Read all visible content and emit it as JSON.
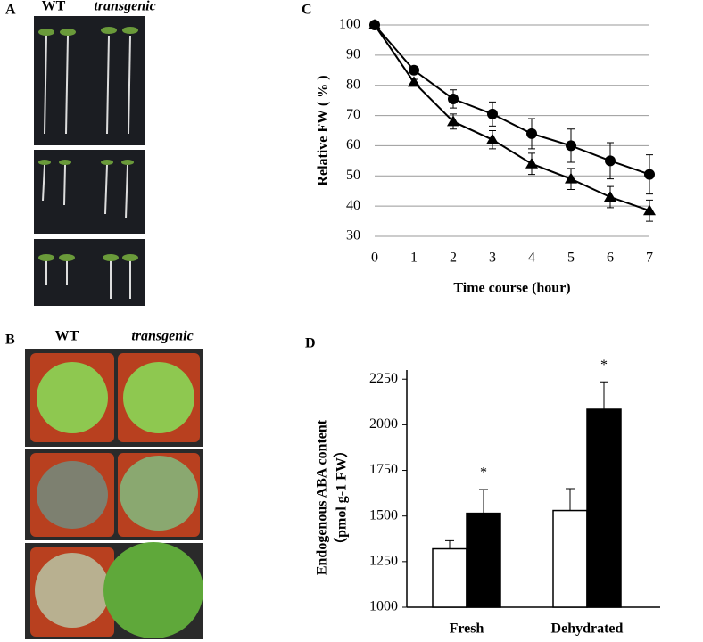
{
  "figure": {
    "panel_labels": [
      "A",
      "B",
      "C",
      "D"
    ],
    "photo_a_labels": [
      "WT",
      "transgenic"
    ],
    "photo_b_labels": [
      "WT",
      "transgenic"
    ]
  },
  "chart_data": [
    {
      "type": "line",
      "xlabel": "Time course (hour)",
      "ylabel": "Relative FW ( % )",
      "x": [
        0,
        1,
        2,
        3,
        4,
        5,
        6,
        7
      ],
      "series": [
        {
          "color": "#000000",
          "marker": "circle",
          "values": [
            100,
            85,
            75.5,
            70.5,
            64,
            60,
            55,
            50.5
          ],
          "errors": [
            0,
            1,
            3,
            4,
            5,
            5.5,
            6,
            6.5
          ]
        },
        {
          "color": "#000000",
          "marker": "triangle",
          "values": [
            100,
            81,
            68,
            62,
            54,
            49,
            43,
            38.5
          ],
          "errors": [
            0,
            1,
            2.5,
            3,
            3.5,
            3.5,
            3.5,
            3.5
          ]
        }
      ],
      "xlim": [
        0,
        7
      ],
      "xticks": [
        0,
        1,
        2,
        3,
        4,
        5,
        6,
        7
      ],
      "ylim": [
        30,
        100
      ],
      "yticks": [
        30,
        40,
        50,
        60,
        70,
        80,
        90,
        100
      ],
      "grid": true
    },
    {
      "type": "bar",
      "ylabel": [
        "Endogenous ABA content",
        "（pmol g-1 FW）"
      ],
      "categories": [
        "Fresh",
        "Dehydrated"
      ],
      "series": [
        {
          "color": "#ffffff",
          "values": [
            1320,
            1530
          ],
          "errors": [
            45,
            120
          ]
        },
        {
          "color": "#000000",
          "values": [
            1515,
            2085
          ],
          "errors": [
            130,
            150
          ],
          "annotations": [
            "*",
            "*"
          ]
        }
      ],
      "ylim": [
        1000,
        2300
      ],
      "yticks": [
        1000,
        1250,
        1500,
        1750,
        2000,
        2250
      ],
      "grid": false
    }
  ]
}
